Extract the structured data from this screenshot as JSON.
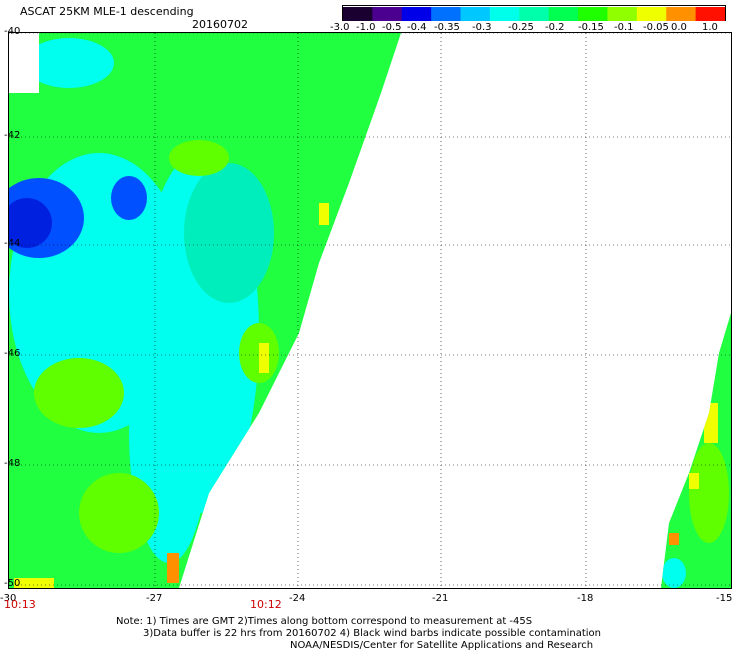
{
  "header": {
    "title": "ASCAT 25KM MLE-1 descending",
    "date": "20160702"
  },
  "colorbar": {
    "labels": [
      "-3.0",
      "-1.0",
      "-0.5",
      "-0.4",
      "-0.35",
      "-0.3",
      "-0.25",
      "-0.2",
      "-0.15",
      "-0.1",
      "-0.05",
      "0.0",
      "1.0"
    ],
    "colors": [
      "#1a0030",
      "#4b0090",
      "#0000e8",
      "#0070ff",
      "#00c8ff",
      "#00ffea",
      "#00ffaa",
      "#00ff50",
      "#20ff00",
      "#90ff00",
      "#f0ff00",
      "#ff9000",
      "#ff1000"
    ]
  },
  "map": {
    "lat_labels": [
      "-40",
      "-42",
      "-44",
      "-46",
      "-48",
      "-50"
    ],
    "lon_labels": [
      "-30",
      "-27",
      "-24",
      "-21",
      "-18",
      "-15"
    ],
    "lat_range": [
      -50,
      -40
    ],
    "lon_range": [
      -30,
      -15
    ],
    "swath_colors": {
      "green": "#20ff40",
      "bright_green": "#60ff00",
      "cyan": "#00ffee",
      "teal": "#00eebb",
      "blue": "#0050ff",
      "deep_blue": "#0020e0",
      "yellow": "#f0ff00",
      "orange": "#ff9000"
    }
  },
  "times": {
    "left": "10:13",
    "middle": "10:12"
  },
  "notes": {
    "line1": "Note: 1) Times are GMT 2)Times along bottom correspond to measurement at -45S",
    "line2": "3)Data buffer is 22 hrs from 20160702 4) Black wind barbs indicate possible contamination",
    "line3": "NOAA/NESDIS/Center for Satellite Applications and Research"
  }
}
